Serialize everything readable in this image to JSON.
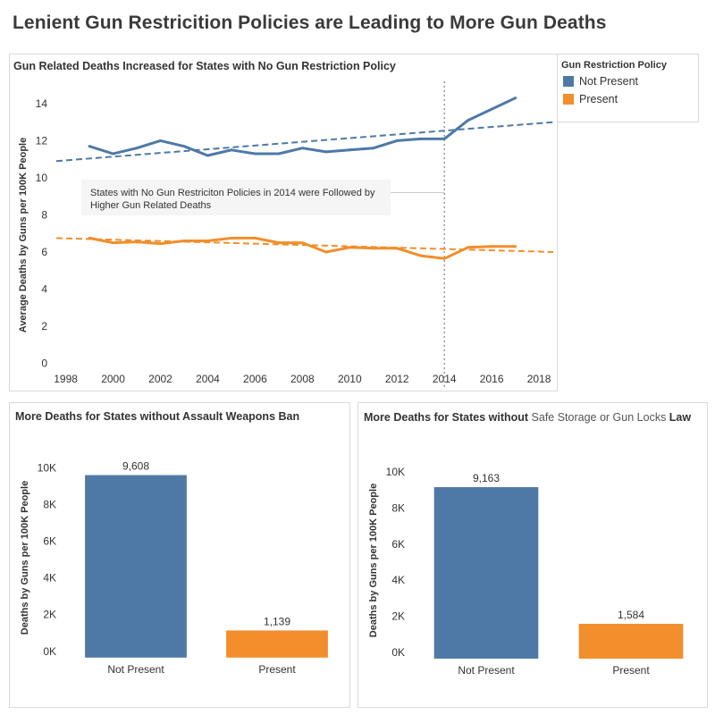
{
  "dashboard": {
    "title": "Lenient Gun Restricition Policies  are Leading to More Gun Deaths"
  },
  "legend": {
    "title": "Gun Restriction Policy",
    "items": [
      {
        "label": "Not Present",
        "color": "#4e79a7"
      },
      {
        "label": "Present",
        "color": "#f28e2b"
      }
    ]
  },
  "chart_data": [
    {
      "type": "line",
      "title": "Gun Related Deaths Increased for States with No Gun Restriction Policy",
      "xlabel": "",
      "ylabel": "Average Deaths by Guns per 100K People",
      "xlim": [
        1997.6,
        2018.6
      ],
      "ylim": [
        -0.6,
        15.2
      ],
      "x_ticks": [
        1998,
        2000,
        2002,
        2004,
        2006,
        2008,
        2010,
        2012,
        2014,
        2016,
        2018
      ],
      "y_ticks": [
        0,
        2,
        4,
        6,
        8,
        10,
        12,
        14
      ],
      "grid": false,
      "legend": "right",
      "reference_line_x": 2014,
      "annotation": "States with No Gun Restriciton Policies in 2014 were Followed by Higher Gun Related Deaths",
      "series": [
        {
          "name": "Not Present",
          "color": "#4e79a7",
          "x": [
            1999,
            2000,
            2001,
            2002,
            2003,
            2004,
            2005,
            2006,
            2007,
            2008,
            2009,
            2010,
            2011,
            2012,
            2013,
            2014,
            2015,
            2016,
            2017
          ],
          "y": [
            11.7,
            11.3,
            11.6,
            12.0,
            11.7,
            11.2,
            11.5,
            11.3,
            11.3,
            11.6,
            11.4,
            11.5,
            11.6,
            12.0,
            12.1,
            12.1,
            13.1,
            13.7,
            14.3
          ],
          "trend": [
            10.9,
            13.0
          ]
        },
        {
          "name": "Present",
          "color": "#f28e2b",
          "x": [
            1999,
            2000,
            2001,
            2002,
            2003,
            2004,
            2005,
            2006,
            2007,
            2008,
            2009,
            2010,
            2011,
            2012,
            2013,
            2014,
            2015,
            2016,
            2017
          ],
          "y": [
            6.75,
            6.5,
            6.55,
            6.45,
            6.6,
            6.6,
            6.75,
            6.75,
            6.5,
            6.5,
            6.0,
            6.25,
            6.2,
            6.2,
            5.8,
            5.65,
            6.25,
            6.3,
            6.3
          ],
          "trend": [
            6.75,
            6.0
          ]
        }
      ]
    },
    {
      "type": "bar",
      "title": "More Deaths for States without Assault Weapons Ban",
      "ylabel": "Deaths by Guns per 100K People",
      "ylim": [
        -400,
        11000
      ],
      "y_ticks": [
        0,
        2000,
        4000,
        6000,
        8000,
        10000
      ],
      "y_tick_labels": [
        "0K",
        "2K",
        "4K",
        "6K",
        "8K",
        "10K"
      ],
      "categories": [
        "Not Present",
        "Present"
      ],
      "values": [
        9608,
        1139
      ],
      "value_labels": [
        "9,608",
        "1,139"
      ],
      "colors": [
        "#4e79a7",
        "#f28e2b"
      ]
    },
    {
      "type": "bar",
      "title": "More Deaths for States without ",
      "title_highlight": "Safe Storage or Gun Locks",
      "title_end": " Law",
      "ylabel": "Deaths by Guns per 100K People",
      "ylim": [
        -400,
        11000
      ],
      "y_ticks": [
        0,
        2000,
        4000,
        6000,
        8000,
        10000
      ],
      "y_tick_labels": [
        "0K",
        "2K",
        "4K",
        "6K",
        "8K",
        "10K"
      ],
      "categories": [
        "Not Present",
        "Present"
      ],
      "values": [
        9163,
        1584
      ],
      "value_labels": [
        "9,163",
        "1,584"
      ],
      "colors": [
        "#4e79a7",
        "#f28e2b"
      ]
    }
  ]
}
